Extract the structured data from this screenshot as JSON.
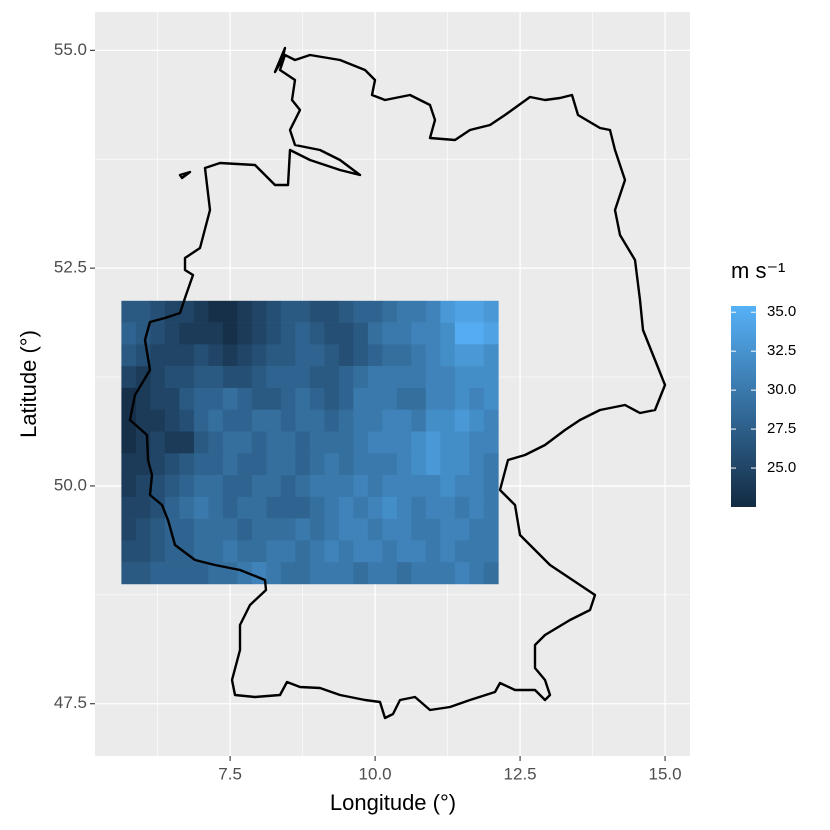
{
  "chart_data": {
    "type": "heatmap",
    "xlabel": "Longitude (°)",
    "ylabel": "Latitude (°)",
    "xlim": [
      5.17,
      15.43
    ],
    "ylim": [
      46.9,
      55.44
    ],
    "xticks": [
      7.5,
      {
        "value": 10,
        "label": "10.0"
      },
      12.5,
      {
        "value": 15,
        "label": "15.0"
      }
    ],
    "yticks": [
      47.5,
      {
        "value": 50,
        "label": "50.0"
      },
      52.5,
      {
        "value": 55,
        "label": "55.0"
      }
    ],
    "grid": true,
    "x": [
      5.75,
      6.0,
      6.25,
      6.5,
      6.75,
      7.0,
      7.25,
      7.5,
      7.75,
      8.0,
      8.25,
      8.5,
      8.75,
      9.0,
      9.25,
      9.5,
      9.75,
      10.0,
      10.25,
      10.5,
      10.75,
      11.0,
      11.25,
      11.5,
      11.75,
      12.0
    ],
    "y": [
      52.0,
      51.75,
      51.5,
      51.25,
      51.0,
      50.75,
      50.5,
      50.25,
      50.0,
      49.75,
      49.5,
      49.25,
      49.0
    ],
    "z": [
      [
        27,
        27,
        26,
        25,
        25,
        24,
        23,
        23,
        24,
        25,
        26,
        27,
        27,
        26,
        26,
        27,
        28,
        28,
        29,
        30,
        30,
        31,
        33,
        34,
        34,
        33
      ],
      [
        28,
        27,
        26,
        25,
        24,
        24,
        24,
        23,
        24,
        25,
        26,
        27,
        28,
        27,
        26,
        26,
        27,
        29,
        30,
        30,
        31,
        31,
        32,
        35,
        35,
        34
      ],
      [
        27,
        26,
        25,
        25,
        25,
        26,
        25,
        24,
        25,
        26,
        27,
        27,
        28,
        28,
        27,
        26,
        27,
        28,
        29,
        29,
        30,
        31,
        32,
        33,
        33,
        32
      ],
      [
        25,
        24,
        25,
        26,
        26,
        27,
        27,
        26,
        26,
        27,
        28,
        28,
        28,
        27,
        27,
        28,
        29,
        30,
        30,
        30,
        30,
        31,
        31,
        32,
        32,
        32
      ],
      [
        23,
        24,
        25,
        25,
        27,
        28,
        28,
        29,
        28,
        27,
        27,
        28,
        29,
        28,
        27,
        28,
        30,
        30,
        30,
        29,
        29,
        31,
        31,
        32,
        31,
        32
      ],
      [
        23,
        24,
        24,
        25,
        26,
        28,
        29,
        28,
        28,
        29,
        29,
        28,
        29,
        29,
        28,
        29,
        30,
        30,
        31,
        31,
        30,
        32,
        32,
        33,
        32,
        31
      ],
      [
        23,
        24,
        25,
        24,
        24,
        27,
        28,
        29,
        29,
        28,
        29,
        29,
        28,
        29,
        29,
        29,
        30,
        31,
        31,
        31,
        32,
        33,
        32,
        32,
        31,
        31
      ],
      [
        24,
        24,
        25,
        26,
        27,
        28,
        28,
        29,
        28,
        28,
        29,
        29,
        28,
        29,
        30,
        29,
        30,
        30,
        30,
        31,
        32,
        33,
        32,
        32,
        31,
        30
      ],
      [
        24,
        25,
        26,
        27,
        28,
        29,
        29,
        28,
        28,
        29,
        29,
        28,
        29,
        30,
        30,
        30,
        31,
        30,
        31,
        31,
        31,
        31,
        32,
        31,
        31,
        30
      ],
      [
        25,
        25,
        26,
        28,
        29,
        30,
        29,
        28,
        29,
        29,
        28,
        28,
        28,
        29,
        30,
        31,
        30,
        31,
        32,
        31,
        30,
        31,
        31,
        30,
        31,
        30
      ],
      [
        25,
        26,
        27,
        28,
        28,
        29,
        29,
        29,
        28,
        29,
        29,
        29,
        30,
        29,
        30,
        31,
        31,
        30,
        31,
        31,
        30,
        30,
        31,
        31,
        30,
        30
      ],
      [
        26,
        26,
        27,
        28,
        28,
        29,
        29,
        30,
        29,
        29,
        30,
        30,
        29,
        30,
        31,
        30,
        31,
        31,
        30,
        31,
        31,
        30,
        31,
        30,
        30,
        30
      ],
      [
        27,
        27,
        28,
        28,
        28,
        28,
        29,
        29,
        30,
        31,
        30,
        29,
        29,
        30,
        30,
        30,
        29,
        30,
        30,
        29,
        30,
        30,
        30,
        31,
        30,
        29
      ]
    ],
    "colorbar": {
      "title": "m s⁻¹",
      "low": "#132B43",
      "high": "#56B1F7",
      "limits": [
        22.5,
        35.4
      ],
      "ticks": [
        {
          "value": 25,
          "label": "25.0"
        },
        27.5,
        {
          "value": 30,
          "label": "30.0"
        },
        32.5,
        {
          "value": 35,
          "label": "35.0"
        }
      ]
    }
  }
}
